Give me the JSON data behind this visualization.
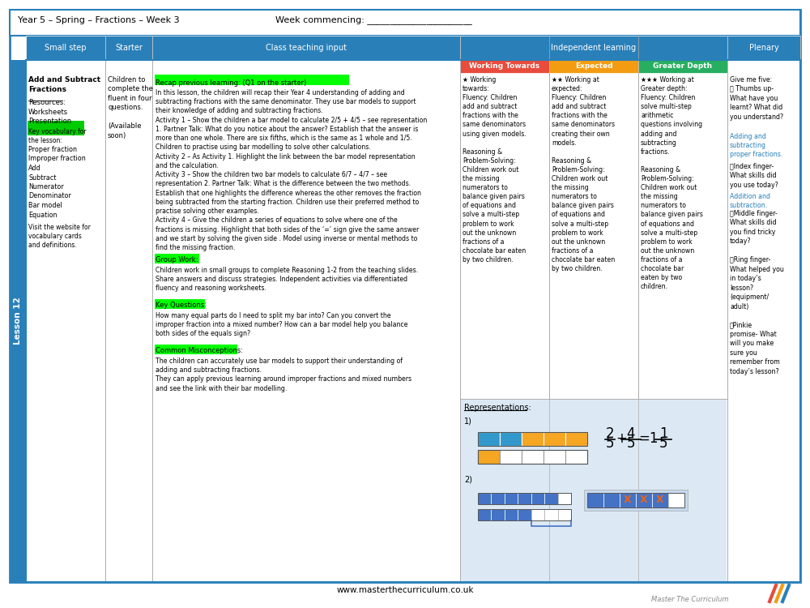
{
  "title_left": "Year 5 – Spring – Fractions – Week 3",
  "title_center": "Week commencing: _______________________",
  "header_bg": "#2980B9",
  "col_headers": [
    "Small step",
    "Starter",
    "Class teaching input",
    "Independent learning",
    "Plenary"
  ],
  "lesson_label": "Lesson 12",
  "wt_header": "Working Towards",
  "wt_header_bg": "#E74C3C",
  "expected_header": "Expected",
  "expected_header_bg": "#F39C12",
  "gd_header": "Greater Depth",
  "gd_header_bg": "#27AE60",
  "footer_text": "www.masterthecurriculum.co.uk",
  "watermark": "Master The Curriculum",
  "highlight_green": "#00FF00",
  "highlight_green2": "#00CC00",
  "bar_blue": "#4472C4",
  "bar_cyan": "#3399CC",
  "bar_yellow": "#F5A623",
  "bar_orange_x": "#E8631A",
  "rep_bg": "#DCE9F5",
  "link_color": "#2980B9"
}
